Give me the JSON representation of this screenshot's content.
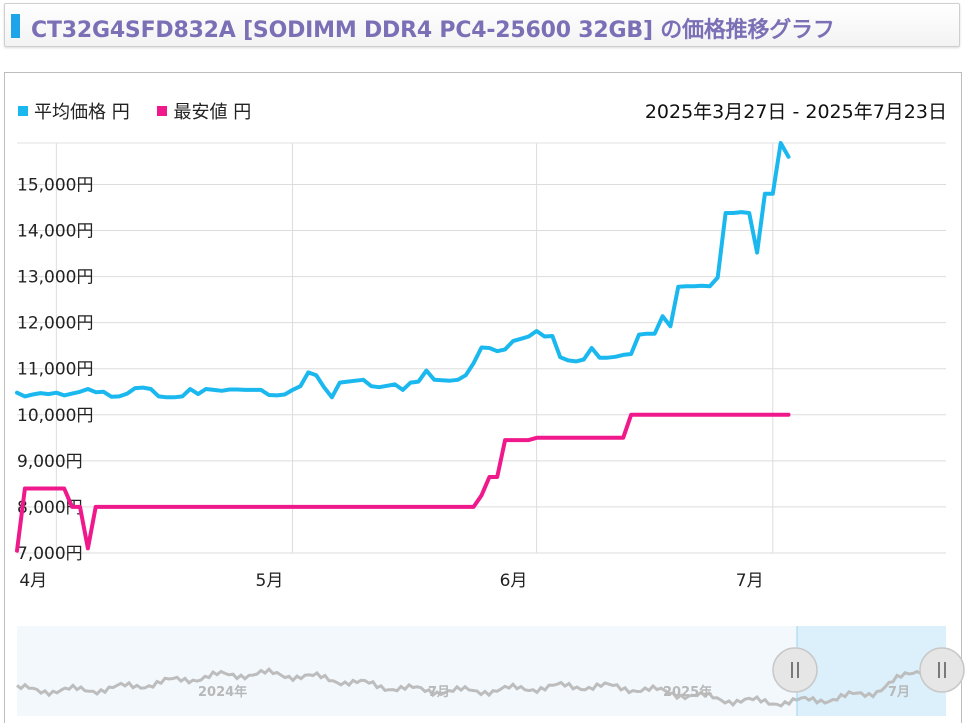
{
  "header": {
    "title": "CT32G4SFD832A [SODIMM DDR4 PC4-25600 32GB] の価格推移グラフ"
  },
  "date_range": "2025年3月27日 - 2025年7月23日",
  "colors": {
    "avg": "#1ab8ef",
    "min": "#f0198c",
    "accent": "#1ea5e9"
  },
  "chart_data": {
    "type": "line",
    "title": "",
    "xlabel": "",
    "ylabel": "",
    "x_range": [
      "2025-03-27",
      "2025-07-23"
    ],
    "ylim": [
      7000,
      15900
    ],
    "y_ticks": [
      7000,
      8000,
      9000,
      10000,
      11000,
      12000,
      13000,
      14000,
      15000
    ],
    "y_tick_labels": [
      "7,000円",
      "8,000円",
      "9,000円",
      "10,000円",
      "11,000円",
      "12,000円",
      "13,000円",
      "14,000円",
      "15,000円"
    ],
    "x_ticks": [
      "2025-04-01",
      "2025-05-01",
      "2025-06-01",
      "2025-07-01"
    ],
    "x_tick_labels": [
      "4月",
      "5月",
      "6月",
      "7月"
    ],
    "grid": true,
    "legend_position": "top-left",
    "series": [
      {
        "name": "平均価格 円",
        "color": "#1ab8ef",
        "points": [
          [
            "2025-03-27",
            10480
          ],
          [
            "2025-03-28",
            10400
          ],
          [
            "2025-03-29",
            10440
          ],
          [
            "2025-03-30",
            10470
          ],
          [
            "2025-03-31",
            10450
          ],
          [
            "2025-04-01",
            10480
          ],
          [
            "2025-04-02",
            10420
          ],
          [
            "2025-04-03",
            10460
          ],
          [
            "2025-04-04",
            10500
          ],
          [
            "2025-04-05",
            10560
          ],
          [
            "2025-04-06",
            10490
          ],
          [
            "2025-04-07",
            10500
          ],
          [
            "2025-04-08",
            10390
          ],
          [
            "2025-04-09",
            10400
          ],
          [
            "2025-04-10",
            10460
          ],
          [
            "2025-04-11",
            10580
          ],
          [
            "2025-04-12",
            10590
          ],
          [
            "2025-04-13",
            10560
          ],
          [
            "2025-04-14",
            10400
          ],
          [
            "2025-04-15",
            10380
          ],
          [
            "2025-04-16",
            10380
          ],
          [
            "2025-04-17",
            10400
          ],
          [
            "2025-04-18",
            10560
          ],
          [
            "2025-04-19",
            10450
          ],
          [
            "2025-04-20",
            10560
          ],
          [
            "2025-04-21",
            10540
          ],
          [
            "2025-04-22",
            10520
          ],
          [
            "2025-04-23",
            10550
          ],
          [
            "2025-04-24",
            10550
          ],
          [
            "2025-04-25",
            10540
          ],
          [
            "2025-04-26",
            10540
          ],
          [
            "2025-04-27",
            10540
          ],
          [
            "2025-04-28",
            10430
          ],
          [
            "2025-04-29",
            10420
          ],
          [
            "2025-04-30",
            10440
          ],
          [
            "2025-05-01",
            10540
          ],
          [
            "2025-05-02",
            10620
          ],
          [
            "2025-05-03",
            10920
          ],
          [
            "2025-05-04",
            10860
          ],
          [
            "2025-05-05",
            10600
          ],
          [
            "2025-05-06",
            10380
          ],
          [
            "2025-05-07",
            10700
          ],
          [
            "2025-05-08",
            10720
          ],
          [
            "2025-05-09",
            10740
          ],
          [
            "2025-05-10",
            10760
          ],
          [
            "2025-05-11",
            10620
          ],
          [
            "2025-05-12",
            10600
          ],
          [
            "2025-05-13",
            10630
          ],
          [
            "2025-05-14",
            10660
          ],
          [
            "2025-05-15",
            10540
          ],
          [
            "2025-05-16",
            10700
          ],
          [
            "2025-05-17",
            10720
          ],
          [
            "2025-05-18",
            10960
          ],
          [
            "2025-05-19",
            10760
          ],
          [
            "2025-05-20",
            10750
          ],
          [
            "2025-05-21",
            10740
          ],
          [
            "2025-05-22",
            10760
          ],
          [
            "2025-05-23",
            10860
          ],
          [
            "2025-05-24",
            11120
          ],
          [
            "2025-05-25",
            11460
          ],
          [
            "2025-05-26",
            11450
          ],
          [
            "2025-05-27",
            11380
          ],
          [
            "2025-05-28",
            11420
          ],
          [
            "2025-05-29",
            11600
          ],
          [
            "2025-05-30",
            11650
          ],
          [
            "2025-05-31",
            11700
          ],
          [
            "2025-06-01",
            11820
          ],
          [
            "2025-06-02",
            11700
          ],
          [
            "2025-06-03",
            11710
          ],
          [
            "2025-06-04",
            11250
          ],
          [
            "2025-06-05",
            11180
          ],
          [
            "2025-06-06",
            11160
          ],
          [
            "2025-06-07",
            11200
          ],
          [
            "2025-06-08",
            11450
          ],
          [
            "2025-06-09",
            11240
          ],
          [
            "2025-06-10",
            11240
          ],
          [
            "2025-06-11",
            11260
          ],
          [
            "2025-06-12",
            11300
          ],
          [
            "2025-06-13",
            11320
          ],
          [
            "2025-06-14",
            11740
          ],
          [
            "2025-06-15",
            11760
          ],
          [
            "2025-06-16",
            11760
          ],
          [
            "2025-06-17",
            12140
          ],
          [
            "2025-06-18",
            11920
          ],
          [
            "2025-06-19",
            12780
          ],
          [
            "2025-06-20",
            12790
          ],
          [
            "2025-06-21",
            12790
          ],
          [
            "2025-06-22",
            12800
          ],
          [
            "2025-06-23",
            12790
          ],
          [
            "2025-06-24",
            12980
          ],
          [
            "2025-06-25",
            14380
          ],
          [
            "2025-06-26",
            14380
          ],
          [
            "2025-06-27",
            14400
          ],
          [
            "2025-06-28",
            14380
          ],
          [
            "2025-06-29",
            13520
          ],
          [
            "2025-06-30",
            14800
          ],
          [
            "2025-07-01",
            14800
          ],
          [
            "2025-07-02",
            15900
          ],
          [
            "2025-07-03",
            15600
          ]
        ]
      },
      {
        "name": "最安値 円",
        "color": "#f0198c",
        "points": [
          [
            "2025-03-27",
            7050
          ],
          [
            "2025-03-28",
            8400
          ],
          [
            "2025-03-29",
            8400
          ],
          [
            "2025-03-30",
            8400
          ],
          [
            "2025-03-31",
            8400
          ],
          [
            "2025-04-01",
            8400
          ],
          [
            "2025-04-02",
            8400
          ],
          [
            "2025-04-03",
            8000
          ],
          [
            "2025-04-04",
            8000
          ],
          [
            "2025-04-05",
            7100
          ],
          [
            "2025-04-06",
            8000
          ],
          [
            "2025-04-07",
            8000
          ],
          [
            "2025-05-20",
            8000
          ],
          [
            "2025-05-24",
            8000
          ],
          [
            "2025-05-25",
            8250
          ],
          [
            "2025-05-26",
            8650
          ],
          [
            "2025-05-27",
            8650
          ],
          [
            "2025-05-28",
            9450
          ],
          [
            "2025-05-31",
            9450
          ],
          [
            "2025-06-01",
            9500
          ],
          [
            "2025-06-12",
            9500
          ],
          [
            "2025-06-13",
            10000
          ],
          [
            "2025-07-03",
            10000
          ]
        ]
      }
    ],
    "navigator": {
      "labels": [
        "2024年",
        "7月",
        "2025年",
        "7月"
      ],
      "selection": [
        "2025-03-27",
        "2025-07-23"
      ],
      "handle_icon": "grip-lines-icon"
    }
  }
}
